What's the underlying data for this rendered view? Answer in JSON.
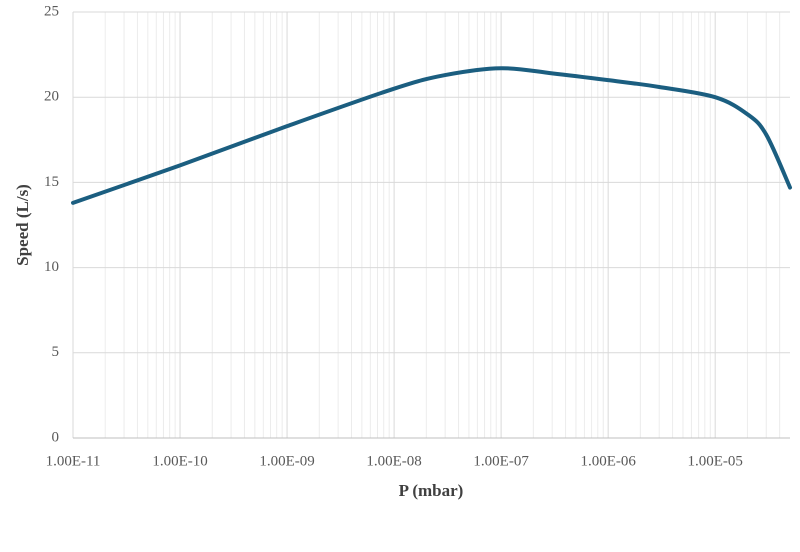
{
  "chart_data": {
    "type": "line",
    "x_label": "P (mbar)",
    "y_label": "Speed (L/s)",
    "log_x": true,
    "grid": true,
    "minor_grid": true,
    "x": [
      1e-11,
      1e-10,
      1e-09,
      1e-08,
      3e-08,
      1e-07,
      3e-07,
      1e-06,
      3e-06,
      1e-05,
      2e-05,
      3e-05,
      5e-05
    ],
    "series": [
      {
        "color": "#1b5e80",
        "values": [
          13.8,
          16.0,
          18.3,
          20.5,
          21.3,
          21.7,
          21.4,
          21.0,
          20.6,
          20.0,
          19.0,
          17.8,
          14.7
        ]
      }
    ],
    "xlim": [
      1e-11,
      5e-05
    ],
    "xticks": [
      {
        "value": 1e-11,
        "label": "1.00E-11"
      },
      {
        "value": 1e-10,
        "label": "1.00E-10"
      },
      {
        "value": 1e-09,
        "label": "1.00E-09"
      },
      {
        "value": 1e-08,
        "label": "1.00E-08"
      },
      {
        "value": 1e-07,
        "label": "1.00E-07"
      },
      {
        "value": 1e-06,
        "label": "1.00E-06"
      },
      {
        "value": 1e-05,
        "label": "1.00E-05"
      }
    ],
    "ylim": [
      0,
      25
    ],
    "yticks": [
      0,
      5,
      10,
      15,
      20,
      25
    ]
  }
}
